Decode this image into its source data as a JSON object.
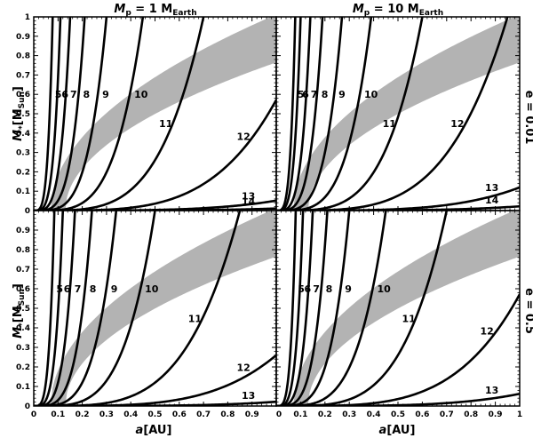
{
  "figure": {
    "titles": [
      {
        "main": "M",
        "sub": "p",
        "rest": "= 1 M",
        "rest_sub": "Earth"
      },
      {
        "main": "M",
        "sub": "p",
        "rest": "= 10 M",
        "rest_sub": "Earth"
      }
    ],
    "row_labels": [
      "e = 0.01",
      "e = 0.5"
    ],
    "xlabel": {
      "sym": "a",
      "rest": "[AU]"
    },
    "ylabel": {
      "sym": "M",
      "sub": "*",
      "rest": "[M",
      "rest_sub": "Sun",
      "close": "]"
    },
    "colors": {
      "band": "#b3b3b3",
      "curve": "#000000"
    }
  },
  "chart_data": [
    {
      "panel": "top-left",
      "type": "line",
      "xlim": [
        0,
        1
      ],
      "ylim": [
        0,
        1
      ],
      "xticks": [
        "0",
        "0.1",
        "0.2",
        "0.3",
        "0.4",
        "0.5",
        "0.6",
        "0.7",
        "0.8",
        "0.9",
        "1"
      ],
      "yticks": [
        "0",
        "0.1",
        "0.2",
        "0.3",
        "0.4",
        "0.5",
        "0.6",
        "0.7",
        "0.8",
        "0.9",
        "1"
      ],
      "band": {
        "lower": {
          "a": 0.13,
          "b": 0.82
        },
        "upper": {
          "a": 0.07,
          "b": 1.05
        }
      },
      "series": [
        {
          "name": "5",
          "k": 0.078
        },
        {
          "name": "6",
          "k": 0.11
        },
        {
          "name": "7",
          "k": 0.15
        },
        {
          "name": "8",
          "k": 0.21
        },
        {
          "name": "9",
          "k": 0.3
        },
        {
          "name": "10",
          "k": 0.45
        },
        {
          "name": "11",
          "k": 0.7
        },
        {
          "name": "12",
          "k": 1.15
        },
        {
          "name": "13",
          "k": 2.1
        },
        {
          "name": "14",
          "k": 3.1
        }
      ]
    },
    {
      "panel": "top-right",
      "type": "line",
      "xlim": [
        0,
        1
      ],
      "ylim": [
        0,
        1
      ],
      "xticks": [
        "0",
        "0.1",
        "0.2",
        "0.3",
        "0.4",
        "0.5",
        "0.6",
        "0.7",
        "0.8",
        "0.9",
        "1"
      ],
      "yticks": [
        "0",
        "0.1",
        "0.2",
        "0.3",
        "0.4",
        "0.5",
        "0.6",
        "0.7",
        "0.8",
        "0.9",
        "1"
      ],
      "band": {
        "lower": {
          "a": 0.13,
          "b": 0.82
        },
        "upper": {
          "a": 0.07,
          "b": 1.05
        }
      },
      "series": [
        {
          "name": "5",
          "k": 0.078
        },
        {
          "name": "6",
          "k": 0.1
        },
        {
          "name": "7",
          "k": 0.14
        },
        {
          "name": "8",
          "k": 0.19
        },
        {
          "name": "9",
          "k": 0.27
        },
        {
          "name": "10",
          "k": 0.39
        },
        {
          "name": "11",
          "k": 0.6
        },
        {
          "name": "12",
          "k": 0.95
        },
        {
          "name": "13",
          "k": 1.7
        },
        {
          "name": "14",
          "k": 2.6
        }
      ]
    },
    {
      "panel": "bottom-left",
      "type": "line",
      "xlim": [
        0,
        1
      ],
      "ylim": [
        0,
        1
      ],
      "xticks": [
        "0",
        "0.1",
        "0.2",
        "0.3",
        "0.4",
        "0.5",
        "0.6",
        "0.7",
        "0.8",
        "0.9",
        "1"
      ],
      "yticks": [
        "0",
        "0.1",
        "0.2",
        "0.3",
        "0.4",
        "0.5",
        "0.6",
        "0.7",
        "0.8",
        "0.9",
        "1"
      ],
      "band": {
        "lower": {
          "a": 0.13,
          "b": 0.82
        },
        "upper": {
          "a": 0.07,
          "b": 1.05
        }
      },
      "series": [
        {
          "name": "5",
          "k": 0.085
        },
        {
          "name": "6",
          "k": 0.12
        },
        {
          "name": "7",
          "k": 0.17
        },
        {
          "name": "8",
          "k": 0.24
        },
        {
          "name": "9",
          "k": 0.34
        },
        {
          "name": "10",
          "k": 0.5
        },
        {
          "name": "11",
          "k": 0.85
        },
        {
          "name": "12",
          "k": 1.4
        },
        {
          "name": "13",
          "k": 2.6
        }
      ]
    },
    {
      "panel": "bottom-right",
      "type": "line",
      "xlim": [
        0,
        1
      ],
      "ylim": [
        0,
        1
      ],
      "xticks": [
        "0",
        "0.1",
        "0.2",
        "0.3",
        "0.4",
        "0.5",
        "0.6",
        "0.7",
        "0.8",
        "0.9",
        "1"
      ],
      "yticks": [
        "0",
        "0.1",
        "0.2",
        "0.3",
        "0.4",
        "0.5",
        "0.6",
        "0.7",
        "0.8",
        "0.9",
        "1"
      ],
      "band": {
        "lower": {
          "a": 0.13,
          "b": 0.82
        },
        "upper": {
          "a": 0.07,
          "b": 1.05
        }
      },
      "series": [
        {
          "name": "5",
          "k": 0.08
        },
        {
          "name": "6",
          "k": 0.11
        },
        {
          "name": "7",
          "k": 0.15
        },
        {
          "name": "8",
          "k": 0.21
        },
        {
          "name": "9",
          "k": 0.3
        },
        {
          "name": "10",
          "k": 0.45
        },
        {
          "name": "11",
          "k": 0.7
        },
        {
          "name": "12",
          "k": 1.15
        },
        {
          "name": "13",
          "k": 2.0
        }
      ]
    }
  ]
}
